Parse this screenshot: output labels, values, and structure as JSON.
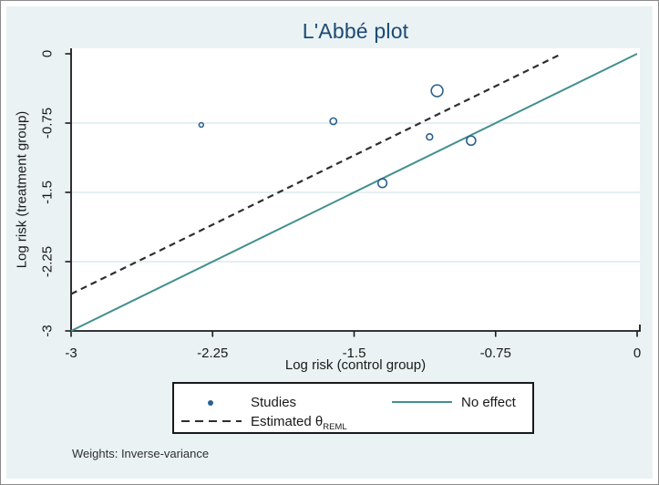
{
  "figure": {
    "title": "L'Abbé plot",
    "note": "Weights: Inverse-variance",
    "colors": {
      "figure_border": "#8a8a8a",
      "panel_bg": "#eaf2f3",
      "plot_bg": "#ffffff",
      "grid": "#dcebed",
      "axis": "#1a1a1a",
      "title_text": "#1c4a76",
      "marker": "#2b608e",
      "no_effect_line": "#42908e",
      "estimated_line": "#2e2e2e"
    }
  },
  "chart_data": {
    "type": "scatter",
    "title": "L'Abbé plot",
    "xlabel": "Log risk (control group)",
    "ylabel": "Log risk (treatment group)",
    "xlim": [
      -3,
      0
    ],
    "ylim": [
      -3,
      0
    ],
    "grid": "horizontal gridlines only",
    "xticks": {
      "values": [
        -3,
        -2.25,
        -1.5,
        -0.75,
        0
      ],
      "labels": [
        "-3",
        "-2.25",
        "-1.5",
        "-0.75",
        "0"
      ]
    },
    "yticks": {
      "values": [
        0,
        -0.75,
        -1.5,
        -2.25,
        -3
      ],
      "labels": [
        "0",
        "-0.75",
        "-1.5",
        "-2.25",
        "-3"
      ]
    },
    "studies": [
      {
        "x": -2.31,
        "y": -0.77,
        "size": 2.4
      },
      {
        "x": -1.61,
        "y": -0.73,
        "size": 3.6
      },
      {
        "x": -1.35,
        "y": -1.4,
        "size": 4.8
      },
      {
        "x": -1.1,
        "y": -0.9,
        "size": 3.4
      },
      {
        "x": -1.06,
        "y": -0.4,
        "size": 6.4
      },
      {
        "x": -0.88,
        "y": -0.94,
        "size": 5.0
      }
    ],
    "lines": [
      {
        "name": "No effect",
        "style": "solid",
        "x": [
          -3,
          0
        ],
        "y": [
          -3,
          0
        ]
      },
      {
        "name": "Estimated θREML",
        "style": "dashed",
        "x": [
          -3,
          -0.4
        ],
        "y": [
          -2.6,
          0
        ]
      }
    ],
    "legend": {
      "position": "bottom-center",
      "items": [
        {
          "id": "studies",
          "marker": "dot",
          "label": "Studies"
        },
        {
          "id": "estimated-theta",
          "marker": "dashed-line",
          "label": "Estimated θ",
          "label_sub": "REML"
        },
        {
          "id": "no-effect",
          "marker": "solid-line",
          "label": "No effect"
        }
      ]
    }
  }
}
